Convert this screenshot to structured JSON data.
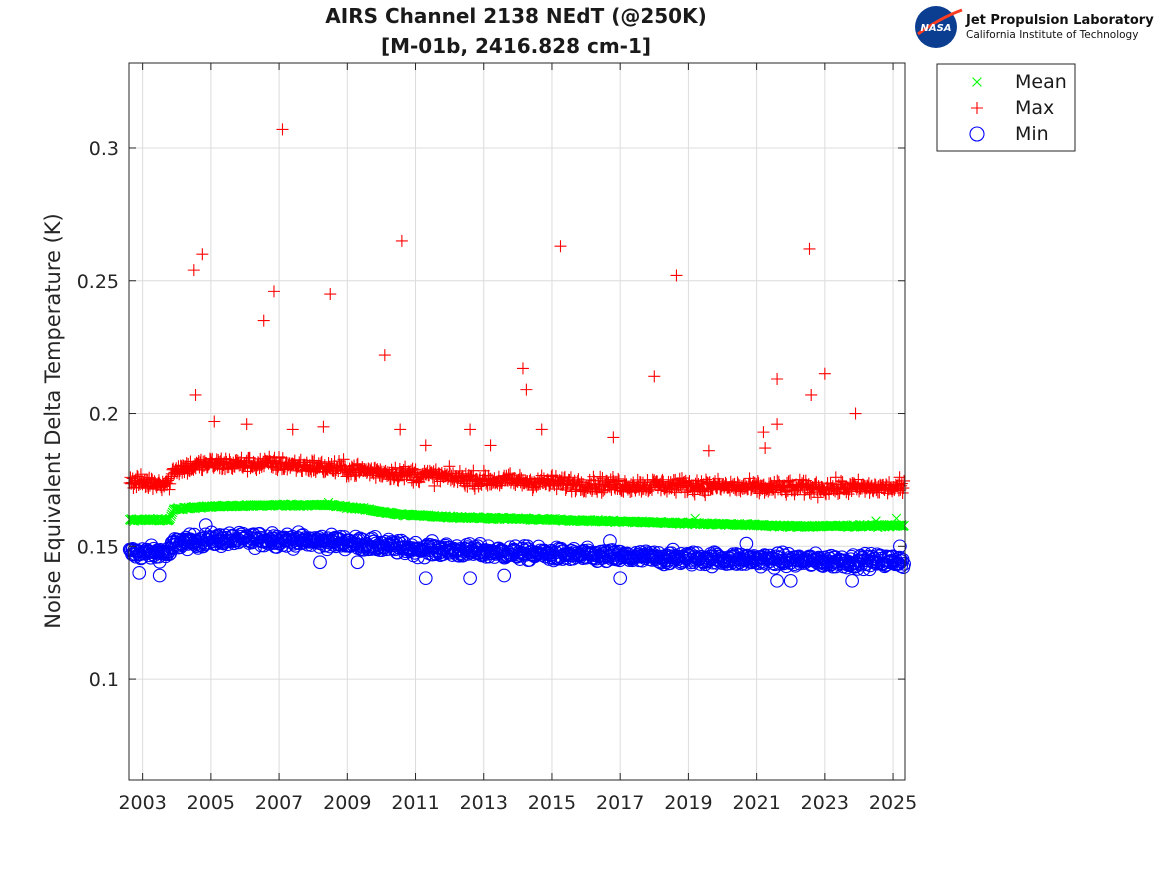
{
  "chart_data": {
    "type": "scatter",
    "title": "AIRS Channel 2138 NEdT (@250K)",
    "subtitle": "[M-01b, 2416.828 cm-1]",
    "xlabel": "",
    "ylabel": "Noise Equivalent Delta Temperature (K)",
    "xlim": [
      2002.6,
      2025.35
    ],
    "ylim": [
      0.062,
      0.332
    ],
    "x_ticks": [
      "2003",
      "2005",
      "2007",
      "2009",
      "2011",
      "2013",
      "2015",
      "2017",
      "2019",
      "2021",
      "2023",
      "2025"
    ],
    "y_ticks": [
      "0.1",
      "0.15",
      "0.2",
      "0.25",
      "0.3"
    ],
    "grid": true,
    "legend_position": "outside-top-right",
    "series": [
      {
        "name": "Mean",
        "marker": "x",
        "color": "#00ff00",
        "trend": [
          [
            2002.6,
            0.16
          ],
          [
            2003.8,
            0.16
          ],
          [
            2003.9,
            0.164
          ],
          [
            2005,
            0.165
          ],
          [
            2007,
            0.1655
          ],
          [
            2008.5,
            0.1655
          ],
          [
            2009.5,
            0.164
          ],
          [
            2010.5,
            0.162
          ],
          [
            2012,
            0.161
          ],
          [
            2015,
            0.16
          ],
          [
            2018,
            0.159
          ],
          [
            2021,
            0.158
          ],
          [
            2022,
            0.1575
          ],
          [
            2025.35,
            0.1578
          ]
        ],
        "outliers": [
          [
            2008.45,
            0.1665
          ],
          [
            2019.2,
            0.1605
          ],
          [
            2024.5,
            0.1595
          ],
          [
            2025.1,
            0.1605
          ]
        ]
      },
      {
        "name": "Max",
        "marker": "+",
        "color": "#ff0000",
        "trend": [
          [
            2002.6,
            0.174
          ],
          [
            2003.8,
            0.174
          ],
          [
            2003.9,
            0.179
          ],
          [
            2005,
            0.181
          ],
          [
            2007,
            0.181
          ],
          [
            2009,
            0.179
          ],
          [
            2011,
            0.177
          ],
          [
            2013,
            0.175
          ],
          [
            2015,
            0.174
          ],
          [
            2017,
            0.173
          ],
          [
            2019,
            0.173
          ],
          [
            2021,
            0.172
          ],
          [
            2023,
            0.172
          ],
          [
            2025.35,
            0.172
          ]
        ],
        "outliers": [
          [
            2004.5,
            0.254
          ],
          [
            2004.75,
            0.26
          ],
          [
            2004.55,
            0.207
          ],
          [
            2005.1,
            0.197
          ],
          [
            2006.05,
            0.196
          ],
          [
            2006.55,
            0.235
          ],
          [
            2006.85,
            0.246
          ],
          [
            2007.1,
            0.307
          ],
          [
            2007.4,
            0.194
          ],
          [
            2008.3,
            0.195
          ],
          [
            2008.5,
            0.245
          ],
          [
            2010.1,
            0.222
          ],
          [
            2010.6,
            0.265
          ],
          [
            2010.55,
            0.194
          ],
          [
            2011.3,
            0.188
          ],
          [
            2012.6,
            0.194
          ],
          [
            2013.2,
            0.188
          ],
          [
            2014.15,
            0.217
          ],
          [
            2014.25,
            0.209
          ],
          [
            2014.7,
            0.194
          ],
          [
            2015.25,
            0.263
          ],
          [
            2016.8,
            0.191
          ],
          [
            2018.0,
            0.214
          ],
          [
            2018.65,
            0.252
          ],
          [
            2019.6,
            0.186
          ],
          [
            2021.2,
            0.193
          ],
          [
            2021.25,
            0.187
          ],
          [
            2021.6,
            0.213
          ],
          [
            2021.6,
            0.196
          ],
          [
            2022.55,
            0.262
          ],
          [
            2022.6,
            0.207
          ],
          [
            2023.0,
            0.215
          ],
          [
            2023.9,
            0.2
          ]
        ]
      },
      {
        "name": "Min",
        "marker": "o",
        "color": "#0000ff",
        "trend": [
          [
            2002.6,
            0.1475
          ],
          [
            2003.8,
            0.1475
          ],
          [
            2003.9,
            0.151
          ],
          [
            2005,
            0.1525
          ],
          [
            2007,
            0.1525
          ],
          [
            2009,
            0.1515
          ],
          [
            2011,
            0.149
          ],
          [
            2013,
            0.148
          ],
          [
            2015,
            0.147
          ],
          [
            2017,
            0.146
          ],
          [
            2019,
            0.1455
          ],
          [
            2021,
            0.145
          ],
          [
            2023,
            0.1445
          ],
          [
            2025.35,
            0.1445
          ]
        ],
        "outliers": [
          [
            2002.9,
            0.14
          ],
          [
            2003.5,
            0.139
          ],
          [
            2004.85,
            0.158
          ],
          [
            2006.8,
            0.155
          ],
          [
            2008.2,
            0.144
          ],
          [
            2009.3,
            0.144
          ],
          [
            2011.3,
            0.138
          ],
          [
            2012.6,
            0.138
          ],
          [
            2013.6,
            0.139
          ],
          [
            2016.7,
            0.152
          ],
          [
            2017.0,
            0.138
          ],
          [
            2020.7,
            0.151
          ],
          [
            2021.6,
            0.137
          ],
          [
            2022.0,
            0.137
          ],
          [
            2023.8,
            0.137
          ],
          [
            2025.2,
            0.15
          ]
        ]
      }
    ]
  },
  "logo": {
    "emblem": "NASA",
    "line1": "Jet Propulsion Laboratory",
    "line2": "California Institute of Technology"
  }
}
